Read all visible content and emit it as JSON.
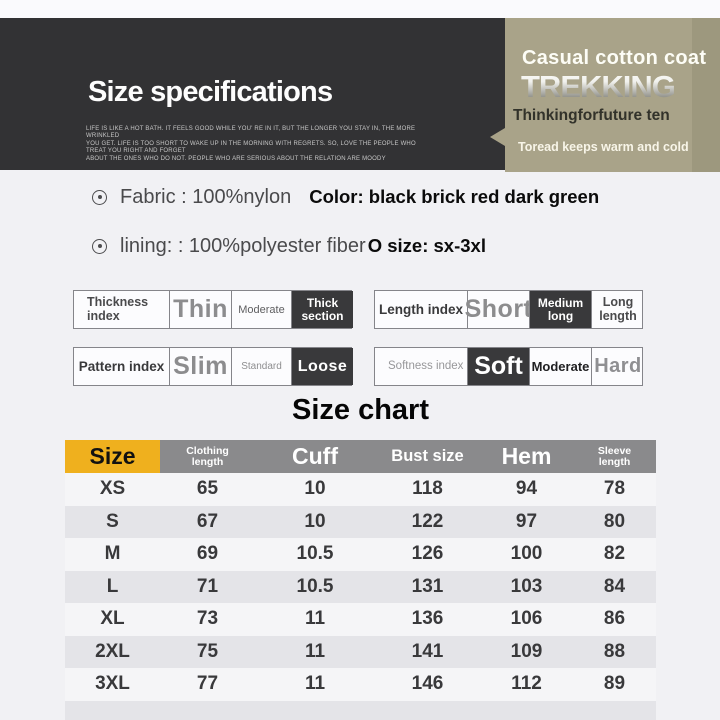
{
  "banner": {
    "title": "Size specifications",
    "tagline_line1": "LIFE IS LIKE A HOT BATH. IT FEELS GOOD WHILE YOU' RE IN IT, BUT THE LONGER YOU STAY IN, THE MORE WRINKLED",
    "tagline_line2": "YOU GET. LIFE IS TOO SHORT TO WAKE UP IN THE MORNING WITH REGRETS. SO, LOVE THE PEOPLE WHO TREAT YOU RIGHT AND FORGET",
    "tagline_line3": "ABOUT THE ONES WHO DO NOT. PEOPLE WHO ARE SERIOUS ABOUT THE RELATION ARE MOODY",
    "bg_color": "#323234"
  },
  "brand_panel": {
    "heading": "Casual cotton coat",
    "brand": "TREKKING",
    "line1": "Thinkingforfuture ten",
    "line2": "Toread keeps warm and cold",
    "bg_color": "#a9a389"
  },
  "product_info": {
    "fabric": "Fabric : 100%nylon",
    "color_note": "Color: black brick red dark green",
    "lining": "lining: : 100%polyester fiber",
    "size_note": "O size: sx-3xl"
  },
  "attributes": {
    "thickness": {
      "label": "Thickness index",
      "opt1": "Thin",
      "opt2": "Moderate",
      "opt3": "Thick section",
      "selected": "Thick section"
    },
    "pattern": {
      "label": "Pattern index",
      "opt1": "Slim",
      "opt2": "Standard",
      "opt3": "Loose",
      "selected": "Loose"
    },
    "length": {
      "label": "Length index",
      "opt1": "Short",
      "opt2": "Medium long",
      "opt3": "Long length",
      "selected": "Medium long"
    },
    "softness": {
      "label": "Softness index",
      "opt1": "Soft",
      "opt2": "Moderate",
      "opt3": "Hard",
      "selected": "Soft"
    }
  },
  "size_chart": {
    "title": "Size chart",
    "accent_color": "#efb01e",
    "header_bg": "#8a8a8c",
    "header": {
      "size": "Size",
      "clothing": "Clothing length",
      "cuff": "Cuff",
      "bust": "Bust size",
      "hem": "Hem",
      "sleeve": "Sleeve length"
    },
    "rows": [
      {
        "size": "XS",
        "clothing": "65",
        "cuff": "10",
        "bust": "118",
        "hem": "94",
        "sleeve": "78"
      },
      {
        "size": "S",
        "clothing": "67",
        "cuff": "10",
        "bust": "122",
        "hem": "97",
        "sleeve": "80"
      },
      {
        "size": "M",
        "clothing": "69",
        "cuff": "10.5",
        "bust": "126",
        "hem": "100",
        "sleeve": "82"
      },
      {
        "size": "L",
        "clothing": "71",
        "cuff": "10.5",
        "bust": "131",
        "hem": "103",
        "sleeve": "84"
      },
      {
        "size": "XL",
        "clothing": "73",
        "cuff": "11",
        "bust": "136",
        "hem": "106",
        "sleeve": "86"
      },
      {
        "size": "2XL",
        "clothing": "75",
        "cuff": "11",
        "bust": "141",
        "hem": "109",
        "sleeve": "88"
      },
      {
        "size": "3XL",
        "clothing": "77",
        "cuff": "11",
        "bust": "146",
        "hem": "112",
        "sleeve": "89"
      }
    ]
  }
}
